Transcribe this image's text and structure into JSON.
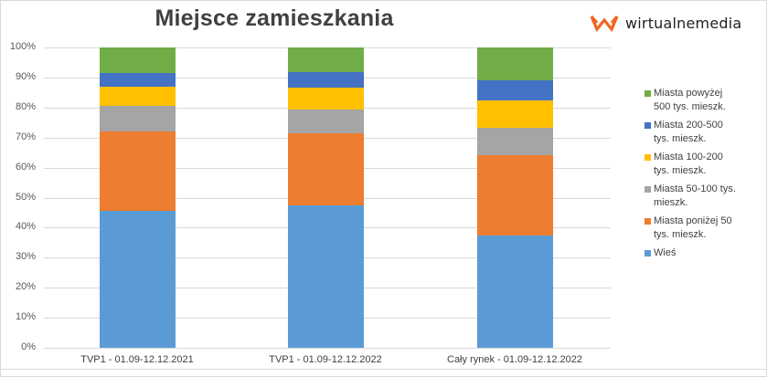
{
  "title": "Miejsce zamieszkania",
  "logo": {
    "text": "wirtualnemedia",
    "icon": "wm-logo-icon",
    "color": "#f26522"
  },
  "chart_data": {
    "type": "bar",
    "stacked": true,
    "percent_stacked": true,
    "title": "Miejsce zamieszkania",
    "xlabel": "",
    "ylabel": "",
    "ylim": [
      0,
      100
    ],
    "yticks": [
      "0%",
      "10%",
      "20%",
      "30%",
      "40%",
      "50%",
      "60%",
      "70%",
      "80%",
      "90%",
      "100%"
    ],
    "grid": true,
    "legend_position": "right",
    "categories": [
      "TVP1 - 01.09-12.12.2021",
      "TVP1 - 01.09-12.12.2022",
      "Cały rynek - 01.09-12.12.2022"
    ],
    "series": [
      {
        "name": "Wieś",
        "color": "#5b9bd5",
        "values": [
          45.6,
          47.4,
          37.4
        ]
      },
      {
        "name": "Miasta poniżej 50 tys. mieszk.",
        "color": "#ed7d31",
        "values": [
          26.4,
          24.0,
          26.6
        ]
      },
      {
        "name": "Miasta 50-100 tys. mieszk.",
        "color": "#a5a5a5",
        "values": [
          8.5,
          8.0,
          9.3
        ]
      },
      {
        "name": "Miasta 100-200 tys. mieszk.",
        "color": "#ffc000",
        "values": [
          6.5,
          7.2,
          9.2
        ]
      },
      {
        "name": "Miasta 200-500 tys. mieszk.",
        "color": "#4472c4",
        "values": [
          4.5,
          5.2,
          6.5
        ]
      },
      {
        "name": "Miasta powyżej 500 tys. mieszk.",
        "color": "#70ad47",
        "values": [
          8.5,
          8.2,
          11.0
        ]
      }
    ]
  },
  "legend": [
    {
      "label_line1": "Miasta powyżej",
      "label_line2": "500 tys. mieszk.",
      "color": "#70ad47"
    },
    {
      "label_line1": "Miasta 200-500",
      "label_line2": "tys. mieszk.",
      "color": "#4472c4"
    },
    {
      "label_line1": "Miasta 100-200",
      "label_line2": "tys. mieszk.",
      "color": "#ffc000"
    },
    {
      "label_line1": "Miasta 50-100 tys.",
      "label_line2": "mieszk.",
      "color": "#a5a5a5"
    },
    {
      "label_line1": "Miasta poniżej 50",
      "label_line2": "tys. mieszk.",
      "color": "#ed7d31"
    },
    {
      "label_line1": "Wieś",
      "label_line2": "",
      "color": "#5b9bd5"
    }
  ]
}
